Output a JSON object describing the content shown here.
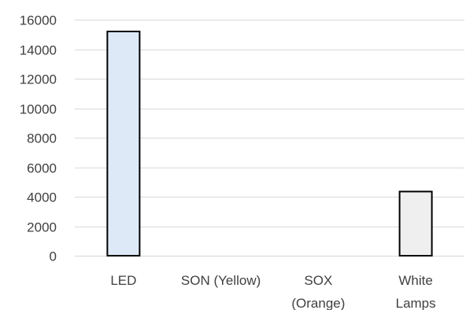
{
  "chart_data": {
    "type": "bar",
    "categories": [
      "LED",
      "SON (Yellow)",
      "SOX (Orange)",
      "White Lamps"
    ],
    "category_lines": [
      [
        "LED"
      ],
      [
        "SON (Yellow)"
      ],
      [
        "SOX",
        "(Orange)"
      ],
      [
        "White",
        "Lamps"
      ]
    ],
    "values": [
      15200,
      0,
      0,
      4350
    ],
    "bar_colors": [
      "#dde9f7",
      "#ffffff",
      "#ffffff",
      "#efefef"
    ],
    "bar_outline_color": "#000000",
    "ylim": [
      0,
      16000
    ],
    "yticks": [
      0,
      2000,
      4000,
      6000,
      8000,
      10000,
      12000,
      14000,
      16000
    ],
    "title": "",
    "xlabel": "",
    "ylabel": "",
    "grid": true,
    "legend": "none"
  }
}
